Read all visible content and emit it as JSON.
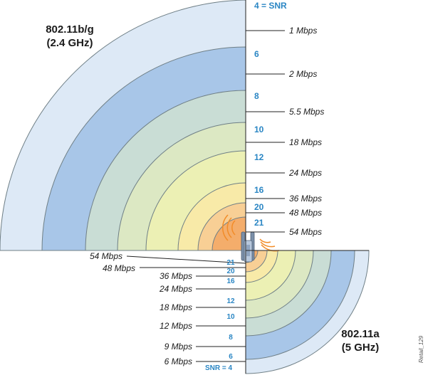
{
  "colors": {
    "ring_fills": [
      "#dde9f6",
      "#a8c6e8",
      "#c9ddd5",
      "#dce8c3",
      "#ecf0b4",
      "#f8eaa8",
      "#f8cf95",
      "#f4ad6b"
    ],
    "snr_blue": "#2a86c4",
    "signal_orange": "#f28c28"
  },
  "bg_panel": {
    "title_line1": "802.11b/g",
    "title_line2": "(2.4 GHz)",
    "header": "4 = SNR",
    "snr_labels": [
      "6",
      "8",
      "10",
      "12",
      "16",
      "20",
      "21"
    ],
    "rates": [
      "1 Mbps",
      "2 Mbps",
      "5.5 Mbps",
      "18 Mbps",
      "24 Mbps",
      "36 Mbps",
      "48 Mbps",
      "54 Mbps"
    ]
  },
  "a_panel": {
    "title_line1": "802.11a",
    "title_line2": "(5 GHz)",
    "snr_labels": [
      "21",
      "20",
      "16",
      "12",
      "10",
      "8",
      "6"
    ],
    "footer": "SNR = 4",
    "rates": [
      "54 Mbps",
      "48 Mbps",
      "36 Mbps",
      "24 Mbps",
      "18 Mbps",
      "12 Mbps",
      "9 Mbps",
      "6 Mbps"
    ]
  },
  "credit": "Retail_129"
}
